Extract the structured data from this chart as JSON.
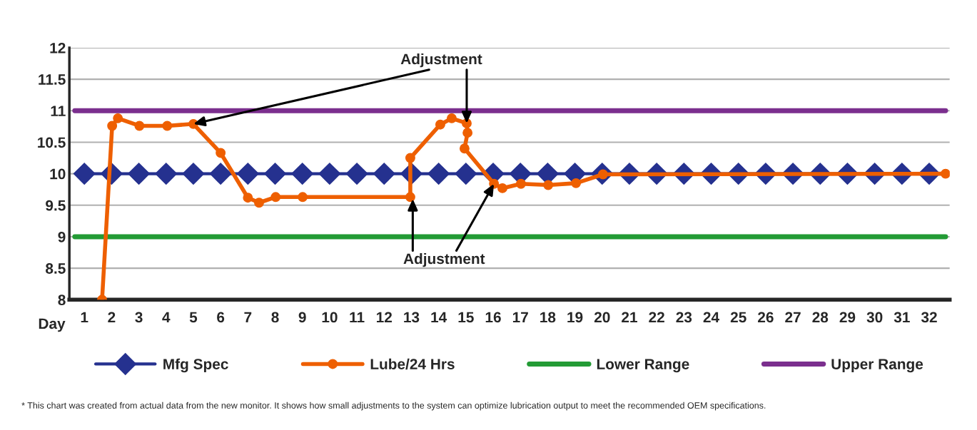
{
  "chart_data": {
    "type": "line",
    "xlabel": "Day",
    "xlim": [
      0.45,
      32.75
    ],
    "xticks": [
      1,
      2,
      3,
      4,
      5,
      6,
      7,
      8,
      9,
      10,
      11,
      12,
      13,
      14,
      15,
      16,
      17,
      18,
      19,
      20,
      21,
      22,
      23,
      24,
      25,
      26,
      27,
      28,
      29,
      30,
      31,
      32
    ],
    "ylim": [
      8,
      12
    ],
    "yticks": [
      8,
      8.5,
      9,
      9.5,
      10,
      10.5,
      11,
      11.5,
      12
    ],
    "grid": "y",
    "legend": "bottom",
    "series": [
      {
        "name": "Mfg Spec",
        "color": "#25318f",
        "marker": "diamond",
        "x": [
          1,
          2,
          3,
          4,
          5,
          6,
          7,
          8,
          9,
          10,
          11,
          12,
          13,
          14,
          15,
          16,
          17,
          18,
          19,
          20,
          21,
          22,
          23,
          24,
          25,
          26,
          27,
          28,
          29,
          30,
          31,
          32
        ],
        "values": [
          10,
          10,
          10,
          10,
          10,
          10,
          10,
          10,
          10,
          10,
          10,
          10,
          10,
          10,
          10,
          10,
          10,
          10,
          10,
          10,
          10,
          10,
          10,
          10,
          10,
          10,
          10,
          10,
          10,
          10,
          10,
          10
        ]
      },
      {
        "name": "Lube/24 Hrs",
        "color": "#ee5f00",
        "marker": "circle",
        "x": [
          1.65,
          2.02,
          2.23,
          3.02,
          4.04,
          5.0,
          6.0,
          7.0,
          7.41,
          8.02,
          9.01,
          12.96,
          12.96,
          14.06,
          14.48,
          15.03,
          15.06,
          14.95,
          16.03,
          16.34,
          17.02,
          18.02,
          19.04,
          20.03,
          32.6
        ],
        "values": [
          8.0,
          10.76,
          10.88,
          10.76,
          10.76,
          10.79,
          10.33,
          9.62,
          9.54,
          9.63,
          9.63,
          9.63,
          10.25,
          10.78,
          10.88,
          10.8,
          10.65,
          10.4,
          9.84,
          9.77,
          9.84,
          9.82,
          9.85,
          9.99,
          10.0
        ]
      },
      {
        "name": "Lower Range",
        "color": "#239b35",
        "marker": "none",
        "x": [
          0.65,
          32.6
        ],
        "values": [
          9,
          9
        ]
      },
      {
        "name": "Upper Range",
        "color": "#7b2f8e",
        "marker": "none",
        "x": [
          0.65,
          32.6
        ],
        "values": [
          11,
          11
        ]
      }
    ],
    "annotations": [
      {
        "text": "Adjustment",
        "x": 5.0,
        "y": 10.79
      },
      {
        "text": "Adjustment",
        "x": 13.05,
        "y": 9.6
      },
      "* This chart was created from actual data from the new monitor. It shows how small adjustments to the system can optimize lubrication output to meet the recommended OEM specifications."
    ]
  }
}
